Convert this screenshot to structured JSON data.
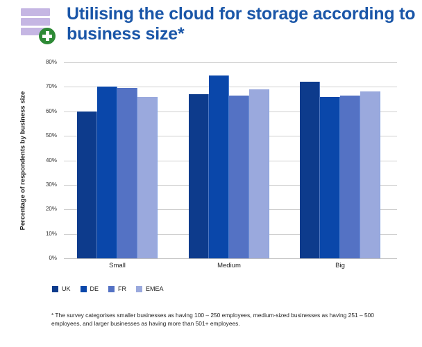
{
  "header": {
    "title": "Utilising the cloud for storage according to business size*",
    "icon": "database-add-icon"
  },
  "chart_data": {
    "type": "bar",
    "title": "Utilising the cloud for storage according to business size*",
    "xlabel": "",
    "ylabel": "Percentage of respondents by business size",
    "categories": [
      "Small",
      "Medium",
      "Big"
    ],
    "series": [
      {
        "name": "UK",
        "color": "#0d3b8c",
        "values": [
          60,
          67,
          72
        ]
      },
      {
        "name": "DE",
        "color": "#0a47aa",
        "values": [
          70,
          74.5,
          66
        ]
      },
      {
        "name": "FR",
        "color": "#5472c4",
        "values": [
          69.5,
          66.5,
          66.5
        ]
      },
      {
        "name": "EMEA",
        "color": "#9aa9dd",
        "values": [
          66,
          69,
          68
        ]
      }
    ],
    "ylim": [
      0,
      80
    ],
    "yticks": [
      "0%",
      "10%",
      "20%",
      "30%",
      "40%",
      "50%",
      "60%",
      "70%",
      "80%"
    ],
    "grid": true,
    "legend_position": "bottom-left"
  },
  "footnote": "* The survey categorises smaller businesses as having 100 – 250 employees, medium-sized businesses as having 251 – 500 employees, and larger businesses as having more than 501+ employees."
}
